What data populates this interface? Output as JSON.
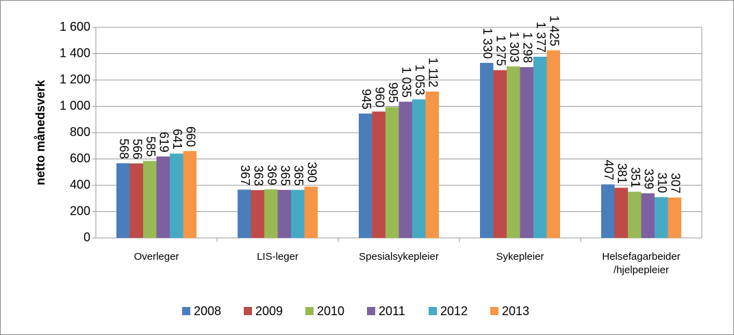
{
  "chart_data": {
    "type": "bar",
    "y_label": "netto månedsverk",
    "categories": [
      "Overleger",
      "LIS-leger",
      "Spesialsykepleier",
      "Sykepleier",
      "Helsefagarbeider\n/hjelpepleier"
    ],
    "series": [
      {
        "name": "2008",
        "color": "#4a7ebb",
        "values": [
          568,
          367,
          945,
          1330,
          407
        ],
        "value_labels": [
          "568",
          "367",
          "945",
          "1 330",
          "407"
        ]
      },
      {
        "name": "2009",
        "color": "#be4b48",
        "values": [
          566,
          363,
          960,
          1275,
          381
        ],
        "value_labels": [
          "566",
          "363",
          "960",
          "1 275",
          "381"
        ]
      },
      {
        "name": "2010",
        "color": "#98b954",
        "values": [
          585,
          369,
          995,
          1303,
          351
        ],
        "value_labels": [
          "585",
          "369",
          "995",
          "1 303",
          "351"
        ]
      },
      {
        "name": "2011",
        "color": "#7d60a0",
        "values": [
          619,
          365,
          1035,
          1298,
          339
        ],
        "value_labels": [
          "619",
          "365",
          "1 035",
          "1 298",
          "339"
        ]
      },
      {
        "name": "2012",
        "color": "#46aac5",
        "values": [
          641,
          365,
          1053,
          1377,
          310
        ],
        "value_labels": [
          "641",
          "365",
          "1 053",
          "1 377",
          "310"
        ]
      },
      {
        "name": "2013",
        "color": "#f79646",
        "values": [
          660,
          390,
          1112,
          1425,
          307
        ],
        "value_labels": [
          "660",
          "390",
          "1 112",
          "1 425",
          "307"
        ]
      }
    ],
    "ylim": [
      0,
      1600
    ],
    "yticks": [
      0,
      200,
      400,
      600,
      800,
      {
        "value": 1000,
        "label": "1 000"
      },
      {
        "value": 1200,
        "label": "1 200"
      },
      {
        "value": 1400,
        "label": "1 400"
      },
      {
        "value": 1600,
        "label": "1 600"
      }
    ],
    "grid": true,
    "legend": "bottom"
  }
}
